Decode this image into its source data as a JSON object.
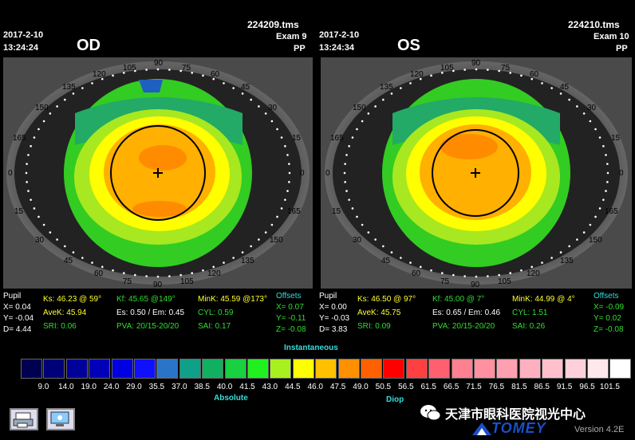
{
  "od": {
    "date": "2017-2-10",
    "time": "13:24:24",
    "file": "224209.tms",
    "exam": "Exam 9",
    "mode": "PP",
    "eye": "OD",
    "angles": [
      "105",
      "90",
      "75",
      "120",
      "60",
      "135",
      "45",
      "150",
      "30",
      "165",
      "15",
      "0",
      "0",
      "15",
      "165",
      "30",
      "150",
      "45",
      "135",
      "60",
      "120",
      "75",
      "90",
      "105"
    ],
    "stats": {
      "pupil": "Pupil",
      "x": "X= 0.04",
      "y": "Y= -0.04",
      "d": "D= 4.44",
      "ks": "Ks: 46.23 @ 59°",
      "avek": "AveK: 45.94",
      "sri": "SRI: 0.06",
      "kf": "Kf: 45.65 @149°",
      "es": "Es: 0.50 / Em: 0.45",
      "pva": "PVA: 20/15-20/20",
      "mink": "MinK: 45.59 @173°",
      "cyl": "CYL: 0.59",
      "sai": "SAI: 0.17",
      "offsets": "Offsets",
      "ox": "X= 0.07",
      "oy": "Y= -0.11",
      "oz": "Z= -0.08"
    }
  },
  "os": {
    "date": "2017-2-10",
    "time": "13:24:34",
    "file": "224210.tms",
    "exam": "Exam 10",
    "mode": "PP",
    "eye": "OS",
    "angles": [
      "105",
      "90",
      "75",
      "120",
      "60",
      "135",
      "45",
      "150",
      "30",
      "165",
      "15",
      "0",
      "0",
      "15",
      "165",
      "30",
      "150",
      "45",
      "135",
      "60",
      "120",
      "75",
      "90",
      "105"
    ],
    "stats": {
      "pupil": "Pupil",
      "x": "X= 0.00",
      "y": "Y= -0.03",
      "d": "D= 3.83",
      "ks": "Ks: 46.50 @ 97°",
      "avek": "AveK: 45.75",
      "sri": "SRI: 0.09",
      "kf": "Kf: 45.00 @ 7°",
      "es": "Es: 0.65 / Em: 0.46",
      "pva": "PVA: 20/15-20/20",
      "mink": "MinK: 44.99 @ 4°",
      "cyl": "CYL: 1.51",
      "sai": "SAI: 0.26",
      "offsets": "Offsets",
      "ox": "X= -0.09",
      "oy": "Y= 0.02",
      "oz": "Z= -0.08"
    }
  },
  "scale": {
    "title": "Instantaneous",
    "left_label": "Absolute",
    "right_label": "Diop",
    "ticks": [
      "9.0",
      "14.0",
      "19.0",
      "24.0",
      "29.0",
      "35.5",
      "37.0",
      "38.5",
      "40.0",
      "41.5",
      "43.0",
      "44.5",
      "46.0",
      "47.5",
      "49.0",
      "50.5",
      "56.5",
      "61.5",
      "66.5",
      "71.5",
      "76.5",
      "81.5",
      "86.5",
      "91.5",
      "96.5",
      "101.5"
    ],
    "colors": [
      "#000050",
      "#000078",
      "#00009a",
      "#0000b8",
      "#0000e0",
      "#1010ff",
      "#2a74c8",
      "#0fa08a",
      "#10b060",
      "#18d040",
      "#20f020",
      "#a8f020",
      "#ffff00",
      "#ffc000",
      "#ff9000",
      "#ff6000",
      "#ff0000",
      "#ff4040",
      "#ff6070",
      "#ff8090",
      "#ff90a0",
      "#ffa0b0",
      "#ffb0c0",
      "#ffc0cc",
      "#ffd0dc",
      "#ffe8ec",
      "#ffffff"
    ]
  },
  "footer": {
    "brand": "天津市眼科医院视光中心",
    "logo": "TOMEY",
    "version": "Version 4.2E"
  },
  "icons": [
    "print-icon",
    "screen-icon",
    "wechat-icon"
  ]
}
